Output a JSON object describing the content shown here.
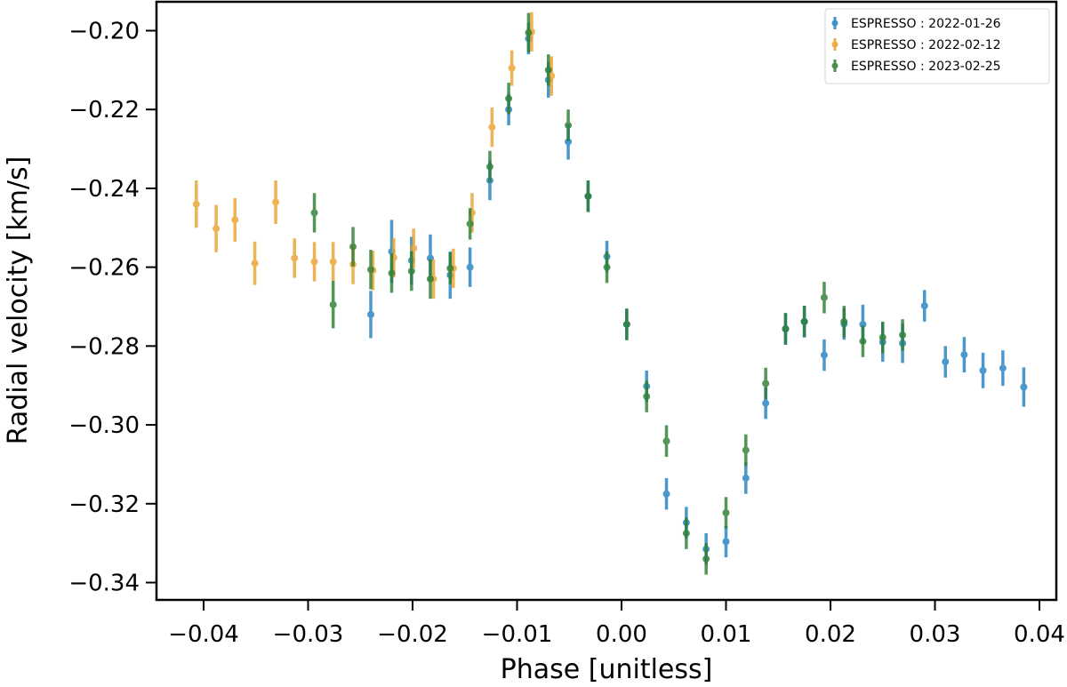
{
  "chart_data": {
    "type": "scatter",
    "title": "",
    "xlabel": "Phase [unitless]",
    "ylabel": "Radial velocity [km/s]",
    "xlim": [
      -0.0446,
      0.0415
    ],
    "ylim": [
      -0.3457,
      -0.1878
    ],
    "xticks": [
      -0.04,
      -0.03,
      -0.02,
      -0.01,
      0.0,
      0.01,
      0.02,
      0.03,
      0.04
    ],
    "xtick_labels": [
      "−0.04",
      "−0.03",
      "−0.02",
      "−0.01",
      "0.00",
      "0.01",
      "0.02",
      "0.03",
      "0.04"
    ],
    "yticks": [
      -0.2,
      -0.22,
      -0.24,
      -0.26,
      -0.28,
      -0.3,
      -0.32,
      -0.34
    ],
    "ytick_labels": [
      "−0.20",
      "−0.22",
      "−0.24",
      "−0.26",
      "−0.28",
      "−0.30",
      "−0.32",
      "−0.34"
    ],
    "grid": false,
    "legend_position": "upper right",
    "series": [
      {
        "name": "ESPRESSO : 2022-01-26",
        "color": "#1f7fc0",
        "points": [
          {
            "x": -0.024,
            "y": -0.272,
            "err": 0.006
          },
          {
            "x": -0.022,
            "y": -0.256,
            "err": 0.008
          },
          {
            "x": -0.0201,
            "y": -0.2583,
            "err": 0.006
          },
          {
            "x": -0.0183,
            "y": -0.2577,
            "err": 0.006
          },
          {
            "x": -0.0164,
            "y": -0.262,
            "err": 0.006
          },
          {
            "x": -0.0145,
            "y": -0.26,
            "err": 0.005
          },
          {
            "x": -0.0126,
            "y": -0.238,
            "err": 0.005
          },
          {
            "x": -0.0108,
            "y": -0.22,
            "err": 0.004
          },
          {
            "x": -0.0089,
            "y": -0.202,
            "err": 0.004
          },
          {
            "x": -0.007,
            "y": -0.2125,
            "err": 0.0045
          },
          {
            "x": -0.0051,
            "y": -0.2282,
            "err": 0.0045
          },
          {
            "x": -0.0032,
            "y": -0.242,
            "err": 0.004
          },
          {
            "x": -0.0014,
            "y": -0.2573,
            "err": 0.004
          },
          {
            "x": 0.0005,
            "y": -0.2745,
            "err": 0.004
          },
          {
            "x": 0.0024,
            "y": -0.2902,
            "err": 0.004
          },
          {
            "x": 0.0043,
            "y": -0.3175,
            "err": 0.004
          },
          {
            "x": 0.0062,
            "y": -0.3248,
            "err": 0.004
          },
          {
            "x": 0.0081,
            "y": -0.3315,
            "err": 0.004
          },
          {
            "x": 0.01,
            "y": -0.3296,
            "err": 0.004
          },
          {
            "x": 0.0119,
            "y": -0.3135,
            "err": 0.004
          },
          {
            "x": 0.0138,
            "y": -0.2945,
            "err": 0.004
          },
          {
            "x": 0.0157,
            "y": -0.2757,
            "err": 0.004
          },
          {
            "x": 0.0175,
            "y": -0.2738,
            "err": 0.004
          },
          {
            "x": 0.0194,
            "y": -0.2823,
            "err": 0.004
          },
          {
            "x": 0.0213,
            "y": -0.2744,
            "err": 0.004
          },
          {
            "x": 0.0231,
            "y": -0.2745,
            "err": 0.005
          },
          {
            "x": 0.025,
            "y": -0.279,
            "err": 0.005
          },
          {
            "x": 0.0269,
            "y": -0.2793,
            "err": 0.005
          },
          {
            "x": 0.029,
            "y": -0.2698,
            "err": 0.004
          },
          {
            "x": 0.031,
            "y": -0.284,
            "err": 0.004
          },
          {
            "x": 0.0328,
            "y": -0.2822,
            "err": 0.0045
          },
          {
            "x": 0.0346,
            "y": -0.2862,
            "err": 0.0045
          },
          {
            "x": 0.0365,
            "y": -0.2856,
            "err": 0.0045
          },
          {
            "x": 0.0385,
            "y": -0.2904,
            "err": 0.005
          }
        ]
      },
      {
        "name": "ESPRESSO : 2022-02-12",
        "color": "#e9a12a",
        "points": [
          {
            "x": -0.0407,
            "y": -0.244,
            "err": 0.006
          },
          {
            "x": -0.0388,
            "y": -0.2502,
            "err": 0.006
          },
          {
            "x": -0.037,
            "y": -0.248,
            "err": 0.0055
          },
          {
            "x": -0.0351,
            "y": -0.259,
            "err": 0.0055
          },
          {
            "x": -0.0331,
            "y": -0.2435,
            "err": 0.0055
          },
          {
            "x": -0.0313,
            "y": -0.2577,
            "err": 0.005
          },
          {
            "x": -0.0294,
            "y": -0.2586,
            "err": 0.005
          },
          {
            "x": -0.0276,
            "y": -0.2586,
            "err": 0.005
          },
          {
            "x": -0.0257,
            "y": -0.2593,
            "err": 0.005
          },
          {
            "x": -0.0238,
            "y": -0.2608,
            "err": 0.005
          },
          {
            "x": -0.0218,
            "y": -0.2576,
            "err": 0.005
          },
          {
            "x": -0.0199,
            "y": -0.2552,
            "err": 0.005
          },
          {
            "x": -0.018,
            "y": -0.263,
            "err": 0.005
          },
          {
            "x": -0.0161,
            "y": -0.2603,
            "err": 0.005
          },
          {
            "x": -0.0143,
            "y": -0.2462,
            "err": 0.005
          },
          {
            "x": -0.0124,
            "y": -0.2245,
            "err": 0.005
          },
          {
            "x": -0.0105,
            "y": -0.2095,
            "err": 0.0045
          },
          {
            "x": -0.0086,
            "y": -0.2003,
            "err": 0.005
          },
          {
            "x": -0.0067,
            "y": -0.2115,
            "err": 0.005
          }
        ]
      },
      {
        "name": "ESPRESSO : 2023-02-25",
        "color": "#2a7d2e",
        "points": [
          {
            "x": -0.0294,
            "y": -0.2462,
            "err": 0.005
          },
          {
            "x": -0.0276,
            "y": -0.2695,
            "err": 0.006
          },
          {
            "x": -0.0257,
            "y": -0.2548,
            "err": 0.005
          },
          {
            "x": -0.024,
            "y": -0.2606,
            "err": 0.005
          },
          {
            "x": -0.022,
            "y": -0.2615,
            "err": 0.005
          },
          {
            "x": -0.0201,
            "y": -0.261,
            "err": 0.005
          },
          {
            "x": -0.0183,
            "y": -0.263,
            "err": 0.005
          },
          {
            "x": -0.0164,
            "y": -0.2603,
            "err": 0.004
          },
          {
            "x": -0.0145,
            "y": -0.249,
            "err": 0.004
          },
          {
            "x": -0.0126,
            "y": -0.2345,
            "err": 0.004
          },
          {
            "x": -0.0108,
            "y": -0.2172,
            "err": 0.004
          },
          {
            "x": -0.0089,
            "y": -0.2005,
            "err": 0.005
          },
          {
            "x": -0.007,
            "y": -0.21,
            "err": 0.004
          },
          {
            "x": -0.0051,
            "y": -0.224,
            "err": 0.004
          },
          {
            "x": -0.0032,
            "y": -0.242,
            "err": 0.004
          },
          {
            "x": -0.0014,
            "y": -0.26,
            "err": 0.004
          },
          {
            "x": 0.0005,
            "y": -0.2745,
            "err": 0.004
          },
          {
            "x": 0.0024,
            "y": -0.2928,
            "err": 0.004
          },
          {
            "x": 0.0043,
            "y": -0.3041,
            "err": 0.004
          },
          {
            "x": 0.0062,
            "y": -0.3275,
            "err": 0.004
          },
          {
            "x": 0.0081,
            "y": -0.334,
            "err": 0.004
          },
          {
            "x": 0.01,
            "y": -0.3223,
            "err": 0.004
          },
          {
            "x": 0.0119,
            "y": -0.3064,
            "err": 0.004
          },
          {
            "x": 0.0138,
            "y": -0.2895,
            "err": 0.004
          },
          {
            "x": 0.0157,
            "y": -0.2756,
            "err": 0.004
          },
          {
            "x": 0.0175,
            "y": -0.2738,
            "err": 0.004
          },
          {
            "x": 0.0194,
            "y": -0.2677,
            "err": 0.004
          },
          {
            "x": 0.0213,
            "y": -0.2738,
            "err": 0.004
          },
          {
            "x": 0.0231,
            "y": -0.2788,
            "err": 0.004
          },
          {
            "x": 0.025,
            "y": -0.2778,
            "err": 0.004
          },
          {
            "x": 0.0269,
            "y": -0.2772,
            "err": 0.004
          }
        ]
      }
    ]
  },
  "legend": {
    "items": [
      {
        "label": "ESPRESSO : 2022-01-26",
        "color": "#1f7fc0"
      },
      {
        "label": "ESPRESSO : 2022-02-12",
        "color": "#e9a12a"
      },
      {
        "label": "ESPRESSO : 2023-02-25",
        "color": "#2a7d2e"
      }
    ]
  },
  "axes": {
    "xlabel": "Phase [unitless]",
    "ylabel": "Radial velocity [km/s]"
  }
}
